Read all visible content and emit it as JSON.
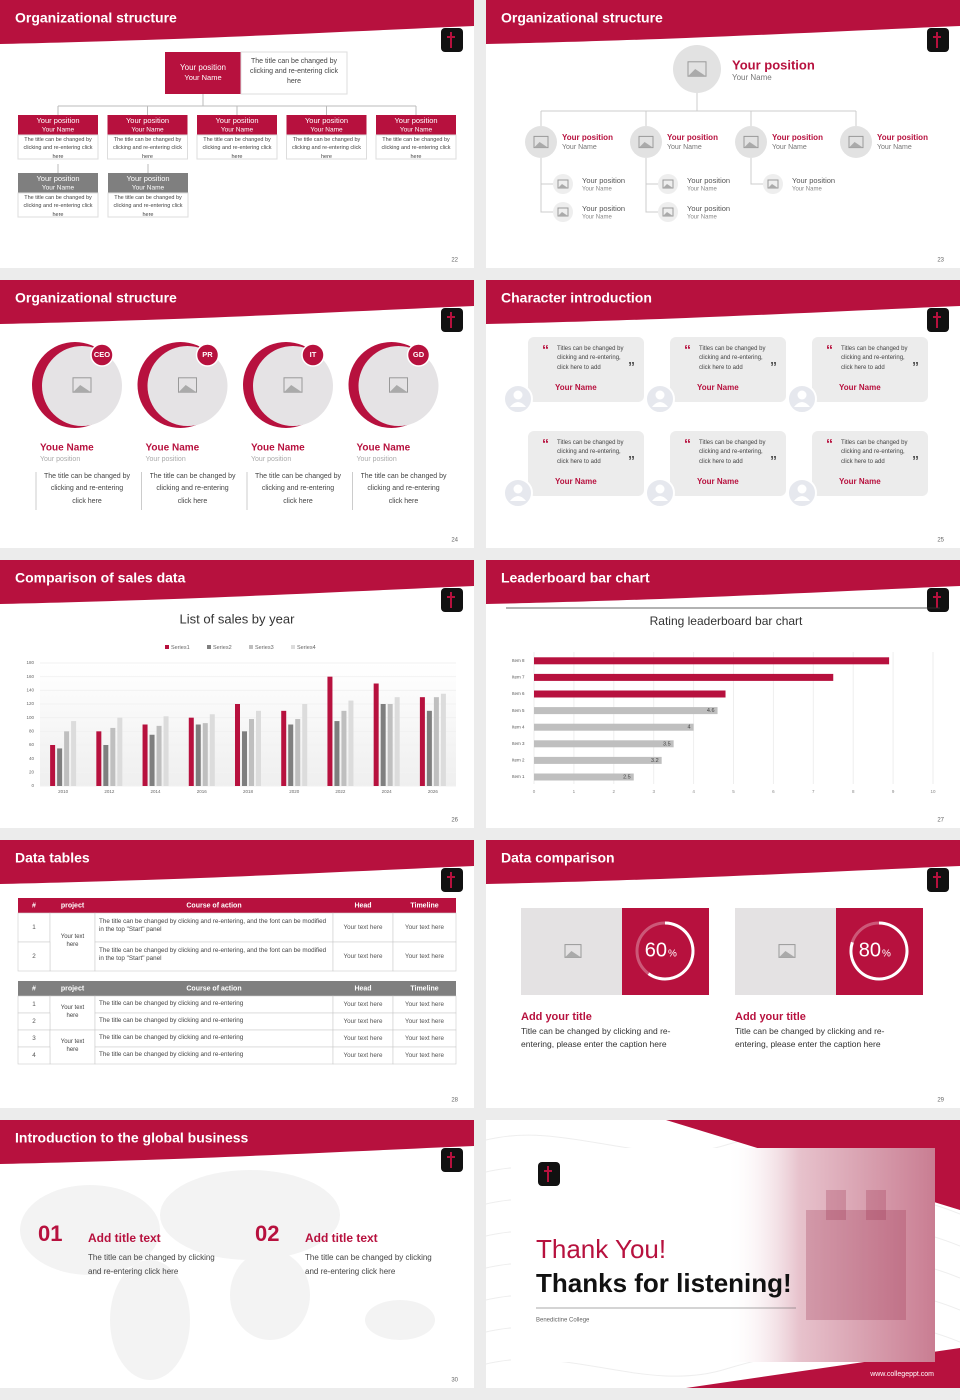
{
  "slides": [
    {
      "title": "Organizational structure",
      "page": "22",
      "top": {
        "position": "Your position",
        "name": "Your Name",
        "text": "The title can be changed by clicking and re-entering click here"
      },
      "red": [
        {
          "position": "Your position",
          "name": "Your Name",
          "text": "The title can be changed by clicking and re-entering click here"
        },
        {
          "position": "Your position",
          "name": "Your Name",
          "text": "The title can be changed by clicking and re-entering click here"
        },
        {
          "position": "Your position",
          "name": "Your Name",
          "text": "The title can be changed by clicking and re-entering click here"
        },
        {
          "position": "Your position",
          "name": "Your Name",
          "text": "The title can be changed by clicking and re-entering click here"
        },
        {
          "position": "Your position",
          "name": "Your Name",
          "text": "The title can be changed by clicking and re-entering click here"
        }
      ],
      "gray": [
        {
          "position": "Your position",
          "name": "Your Name",
          "text": "The title can be changed by clicking and re-entering click here"
        },
        {
          "position": "Your position",
          "name": "Your Name",
          "text": "The title can be changed by clicking and re-entering click here"
        }
      ]
    },
    {
      "title": "Organizational structure",
      "page": "23",
      "top": {
        "position": "Your position",
        "name": "Your Name"
      },
      "nodes": [
        {
          "position": "Your position",
          "name": "Your Name",
          "children": [
            {
              "position": "Your position",
              "name": "Your Name"
            },
            {
              "position": "Your position",
              "name": "Your Name"
            }
          ]
        },
        {
          "position": "Your position",
          "name": "Your Name",
          "children": [
            {
              "position": "Your position",
              "name": "Your Name"
            },
            {
              "position": "Your position",
              "name": "Your Name"
            }
          ]
        },
        {
          "position": "Your position",
          "name": "Your Name",
          "children": [
            {
              "position": "Your position",
              "name": "Your Name"
            }
          ]
        },
        {
          "position": "Your position",
          "name": "Your Name"
        }
      ]
    },
    {
      "title": "Organizational structure",
      "page": "24",
      "people": [
        {
          "tag": "CEO",
          "name": "Youe Name",
          "role": "Your position",
          "text": "The title can be changed by clicking and re-entering click here"
        },
        {
          "tag": "PR",
          "name": "Youe Name",
          "role": "Your position",
          "text": "The title can be changed by clicking and re-entering click here"
        },
        {
          "tag": "IT",
          "name": "Youe Name",
          "role": "Your position",
          "text": "The title can be changed by clicking and re-entering click here"
        },
        {
          "tag": "GD",
          "name": "Youe Name",
          "role": "Your position",
          "text": "The title can be changed by clicking and re-entering click here"
        }
      ]
    },
    {
      "title": "Character introduction",
      "page": "25",
      "quote_marks": [
        "“",
        "”"
      ],
      "cards": [
        {
          "text": "Titles can be changed by clicking and re-entering, click here to add",
          "name": "Your Name"
        },
        {
          "text": "Titles can be changed by clicking and re-entering, click here to add",
          "name": "Your Name"
        },
        {
          "text": "Titles can be changed by clicking and re-entering, click here to add",
          "name": "Your Name"
        },
        {
          "text": "Titles can be changed by clicking and re-entering, click here to add",
          "name": "Your Name"
        },
        {
          "text": "Titles can be changed by clicking and re-entering, click here to add",
          "name": "Your Name"
        },
        {
          "text": "Titles can be changed by clicking and re-entering, click here to add",
          "name": "Your Name"
        }
      ]
    },
    {
      "title": "Comparison of sales data",
      "page": "26",
      "chart": {
        "type": "bar",
        "title": "List of sales by year",
        "categories": [
          "2010",
          "2012",
          "2014",
          "2016",
          "2018",
          "2020",
          "2022",
          "2024",
          "2026"
        ],
        "series": [
          {
            "name": "Series1",
            "color": "#b7113e",
            "values": [
              60,
              80,
              90,
              100,
              120,
              110,
              160,
              150,
              130
            ]
          },
          {
            "name": "Series2",
            "color": "#7f7f7f",
            "values": [
              55,
              60,
              75,
              90,
              80,
              90,
              95,
              120,
              110
            ]
          },
          {
            "name": "Series3",
            "color": "#bfbfbf",
            "values": [
              80,
              85,
              88,
              92,
              98,
              98,
              110,
              120,
              130
            ]
          },
          {
            "name": "Series4",
            "color": "#dcdcdc",
            "values": [
              95,
              100,
              102,
              105,
              110,
              120,
              125,
              130,
              135
            ]
          }
        ],
        "ylim": [
          0,
          180
        ],
        "yticks": [
          0,
          20,
          40,
          60,
          80,
          100,
          120,
          140,
          160,
          180
        ]
      }
    },
    {
      "title": "Leaderboard bar chart",
      "page": "27",
      "chart": {
        "type": "bar",
        "orientation": "horizontal",
        "title": "Rating leaderboard bar chart",
        "categories": [
          "Item 1",
          "Item 2",
          "Item 3",
          "Item 4",
          "Item 5",
          "Item 6",
          "Item 7",
          "Item 8"
        ],
        "values": [
          2.5,
          3.2,
          3.5,
          4,
          4.6,
          4.8,
          7.5,
          8.9
        ],
        "value_labels": [
          "2.5",
          "3.2",
          "3.5",
          "4",
          "4.6",
          null,
          null,
          null
        ],
        "colors": [
          "#bfbfbf",
          "#bfbfbf",
          "#bfbfbf",
          "#bfbfbf",
          "#bfbfbf",
          "#b7113e",
          "#b7113e",
          "#b7113e"
        ],
        "xlim": [
          0,
          10
        ],
        "xticks": [
          0,
          1,
          2,
          3,
          4,
          5,
          6,
          7,
          8,
          9,
          10
        ]
      }
    },
    {
      "title": "Data tables",
      "page": "28",
      "tables": [
        {
          "header": [
            "#",
            "project",
            "Course of action",
            "Head",
            "Timeline"
          ],
          "rows": [
            [
              "1",
              "Your text here",
              "The title can be changed by clicking and re-entering, and the font can be modified in the top \"Start\" panel",
              "Your text here",
              "Your text here"
            ],
            [
              "2",
              null,
              "The title can be changed by clicking and re-entering, and the font can be modified in the top \"Start\" panel",
              "Your text here",
              "Your text here"
            ]
          ]
        },
        {
          "header": [
            "#",
            "project",
            "Course of action",
            "Head",
            "Timeline"
          ],
          "rows": [
            [
              "1",
              "Your text here",
              "The title can be changed by clicking and re-entering",
              "Your text here",
              "Your text here"
            ],
            [
              "2",
              null,
              "The title can be changed by clicking and re-entering",
              "Your text here",
              "Your text here"
            ],
            [
              "3",
              "Your text here",
              "The title can be changed by clicking and re-entering",
              "Your text here",
              "Your text here"
            ],
            [
              "4",
              null,
              "The title can be changed by clicking and re-entering",
              "Your text here",
              "Your text here"
            ]
          ]
        }
      ]
    },
    {
      "title": "Data comparison",
      "page": "29",
      "items": [
        {
          "percent": 60,
          "unit": "%",
          "title": "Add your title",
          "text": "Title can be changed by clicking and re-entering, please enter the caption here"
        },
        {
          "percent": 80,
          "unit": "%",
          "title": "Add your title",
          "text": "Title can be changed by clicking and re-entering, please enter the caption here"
        }
      ]
    },
    {
      "title": "Introduction to the global business",
      "page": "30",
      "items": [
        {
          "number": "01",
          "title": "Add title text",
          "text": "The title can be changed by clicking and re-entering click here"
        },
        {
          "number": "02",
          "title": "Add title text",
          "text": "The title can be changed by clicking and re-entering click here"
        }
      ]
    },
    {
      "thanks": "Thank You!",
      "subtitle": "Thanks for listening!",
      "college": "Benedictine College",
      "url": "www.collegeppt.com"
    }
  ]
}
